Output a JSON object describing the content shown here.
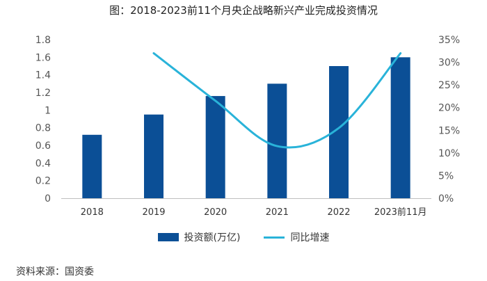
{
  "chart_data": {
    "type": "bar",
    "title": "图：2018-2023前11个月央企战略新兴产业完成投资情况",
    "categories": [
      "2018",
      "2019",
      "2020",
      "2021",
      "2022",
      "2023前11月"
    ],
    "series": [
      {
        "name": "投资额(万亿)",
        "type": "bar",
        "axis": "left",
        "color": "#0b4f96",
        "values": [
          0.72,
          0.95,
          1.16,
          1.3,
          1.5,
          1.6
        ]
      },
      {
        "name": "同比增速",
        "type": "line",
        "axis": "right",
        "color": "#29b3d9",
        "values": [
          null,
          32.0,
          21.5,
          11.5,
          15.5,
          32.0
        ]
      }
    ],
    "y_left": {
      "min": 0,
      "max": 1.8,
      "ticks": [
        "0",
        "0.2",
        "0.4",
        "0.6",
        "0.8",
        "1",
        "1.2",
        "1.4",
        "1.6",
        "1.8"
      ]
    },
    "y_right": {
      "min": 0,
      "max": 35,
      "ticks": [
        "0%",
        "5%",
        "10%",
        "15%",
        "20%",
        "25%",
        "30%",
        "35%"
      ]
    },
    "legend_position": "bottom",
    "grid": false
  },
  "source": "资料来源：国资委"
}
